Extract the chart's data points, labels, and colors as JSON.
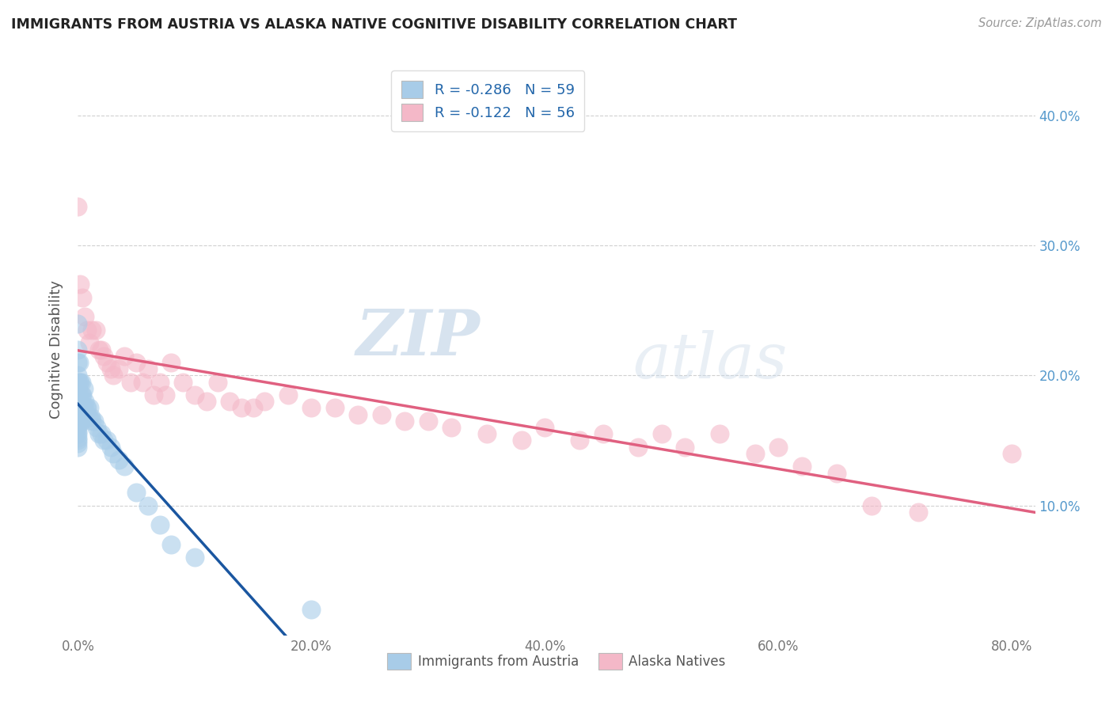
{
  "title": "IMMIGRANTS FROM AUSTRIA VS ALASKA NATIVE COGNITIVE DISABILITY CORRELATION CHART",
  "source": "Source: ZipAtlas.com",
  "ylabel": "Cognitive Disability",
  "legend_labels": [
    "Immigrants from Austria",
    "Alaska Natives"
  ],
  "r_blue": -0.286,
  "n_blue": 59,
  "r_pink": -0.122,
  "n_pink": 56,
  "blue_marker_color": "#a8cce8",
  "pink_marker_color": "#f4b8c8",
  "blue_line_color": "#1a56a0",
  "pink_line_color": "#e06080",
  "watermark_zip": "ZIP",
  "watermark_atlas": "atlas",
  "xlim": [
    0.0,
    0.82
  ],
  "ylim": [
    0.0,
    0.44
  ],
  "xticks": [
    0.0,
    0.2,
    0.4,
    0.6,
    0.8
  ],
  "yticks": [
    0.1,
    0.2,
    0.3,
    0.4
  ],
  "blue_points_x": [
    0.0,
    0.0,
    0.0,
    0.0,
    0.0,
    0.0,
    0.0,
    0.0,
    0.0,
    0.0,
    0.0,
    0.0,
    0.0,
    0.0,
    0.0,
    0.0,
    0.0,
    0.0,
    0.0,
    0.0,
    0.001,
    0.001,
    0.001,
    0.001,
    0.001,
    0.002,
    0.002,
    0.002,
    0.003,
    0.003,
    0.003,
    0.003,
    0.004,
    0.004,
    0.005,
    0.005,
    0.006,
    0.007,
    0.008,
    0.009,
    0.01,
    0.011,
    0.012,
    0.014,
    0.016,
    0.018,
    0.02,
    0.022,
    0.025,
    0.028,
    0.03,
    0.035,
    0.04,
    0.05,
    0.06,
    0.07,
    0.08,
    0.1,
    0.2
  ],
  "blue_points_y": [
    0.24,
    0.22,
    0.21,
    0.2,
    0.195,
    0.19,
    0.185,
    0.18,
    0.175,
    0.172,
    0.168,
    0.165,
    0.162,
    0.16,
    0.157,
    0.155,
    0.152,
    0.15,
    0.148,
    0.145,
    0.21,
    0.195,
    0.18,
    0.175,
    0.165,
    0.195,
    0.185,
    0.175,
    0.195,
    0.185,
    0.175,
    0.165,
    0.185,
    0.175,
    0.19,
    0.175,
    0.18,
    0.175,
    0.175,
    0.168,
    0.175,
    0.168,
    0.165,
    0.165,
    0.16,
    0.155,
    0.155,
    0.15,
    0.15,
    0.145,
    0.14,
    0.135,
    0.13,
    0.11,
    0.1,
    0.085,
    0.07,
    0.06,
    0.02
  ],
  "pink_points_x": [
    0.0,
    0.002,
    0.004,
    0.006,
    0.008,
    0.01,
    0.012,
    0.015,
    0.018,
    0.02,
    0.022,
    0.025,
    0.028,
    0.03,
    0.035,
    0.04,
    0.045,
    0.05,
    0.055,
    0.06,
    0.065,
    0.07,
    0.075,
    0.08,
    0.09,
    0.1,
    0.11,
    0.12,
    0.13,
    0.14,
    0.15,
    0.16,
    0.18,
    0.2,
    0.22,
    0.24,
    0.26,
    0.28,
    0.3,
    0.32,
    0.35,
    0.38,
    0.4,
    0.43,
    0.45,
    0.48,
    0.5,
    0.52,
    0.55,
    0.58,
    0.6,
    0.62,
    0.65,
    0.68,
    0.72,
    0.8
  ],
  "pink_points_y": [
    0.33,
    0.27,
    0.26,
    0.245,
    0.235,
    0.225,
    0.235,
    0.235,
    0.22,
    0.22,
    0.215,
    0.21,
    0.205,
    0.2,
    0.205,
    0.215,
    0.195,
    0.21,
    0.195,
    0.205,
    0.185,
    0.195,
    0.185,
    0.21,
    0.195,
    0.185,
    0.18,
    0.195,
    0.18,
    0.175,
    0.175,
    0.18,
    0.185,
    0.175,
    0.175,
    0.17,
    0.17,
    0.165,
    0.165,
    0.16,
    0.155,
    0.15,
    0.16,
    0.15,
    0.155,
    0.145,
    0.155,
    0.145,
    0.155,
    0.14,
    0.145,
    0.13,
    0.125,
    0.1,
    0.095,
    0.14
  ]
}
